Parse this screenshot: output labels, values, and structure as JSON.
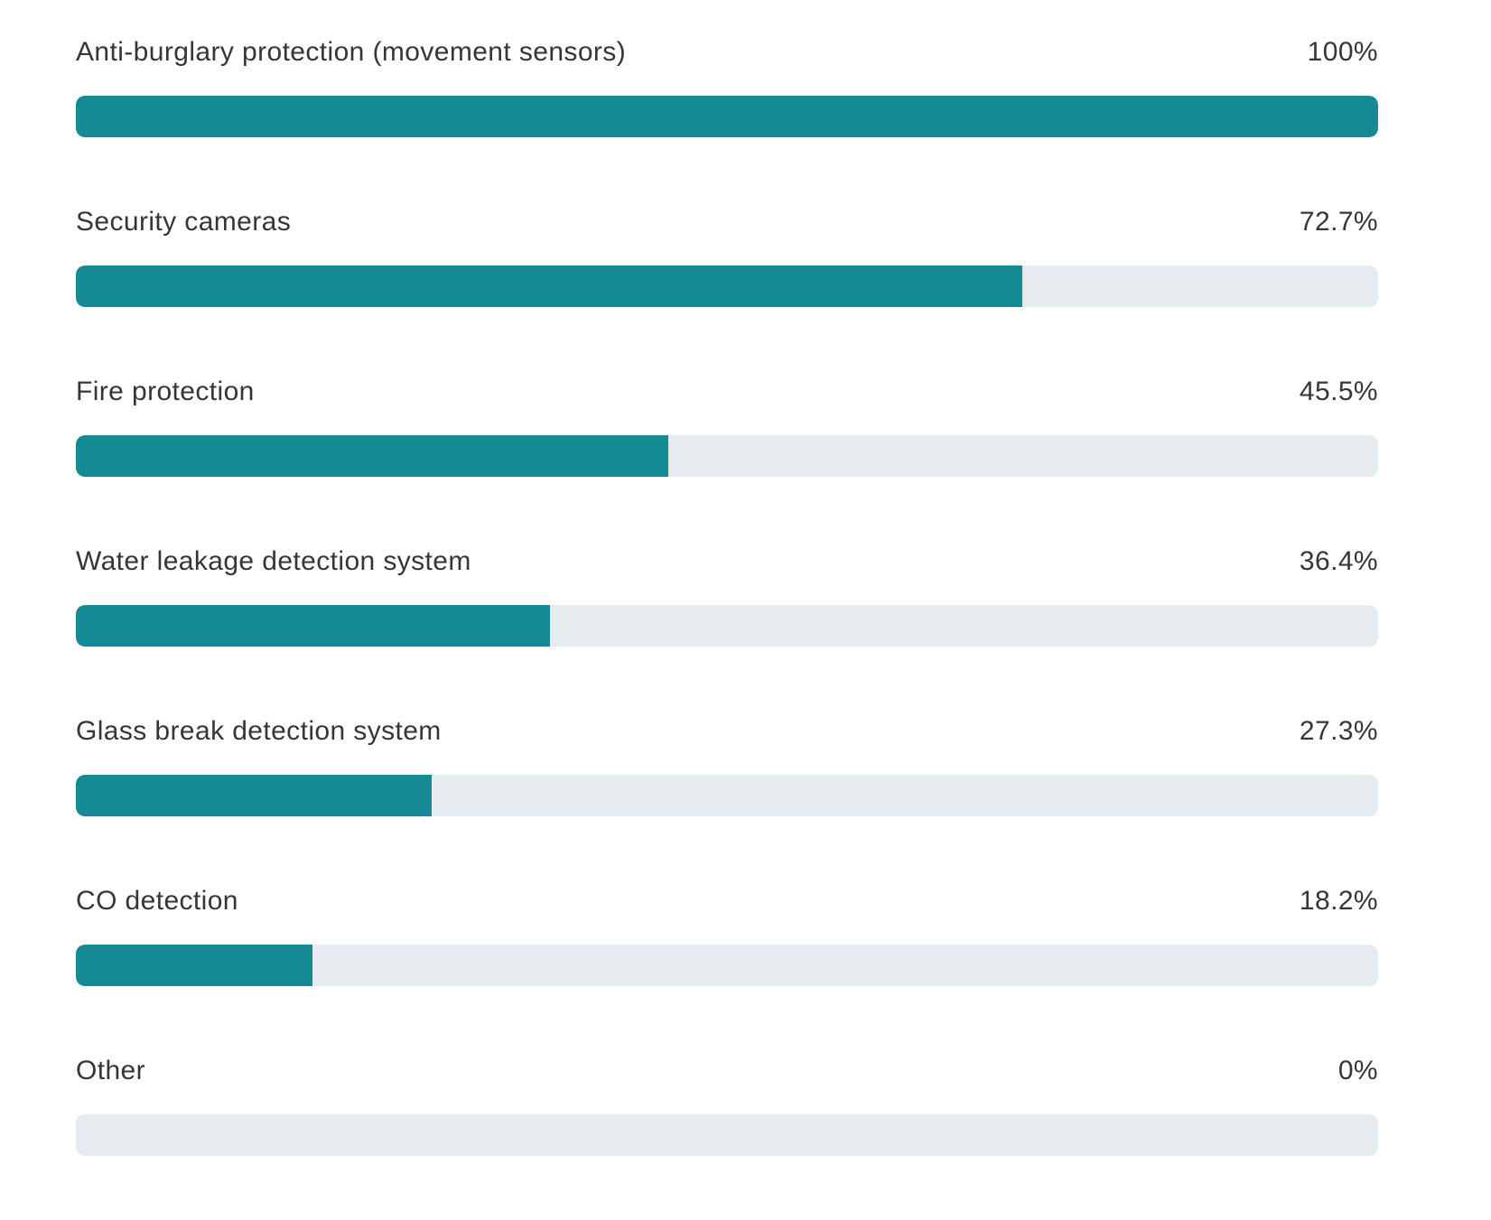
{
  "page": {
    "background": "#ffffff"
  },
  "chart_data": {
    "type": "bar",
    "orientation": "horizontal",
    "unit": "%",
    "title": "",
    "xlabel": "",
    "ylabel": "",
    "xlim": [
      0,
      100
    ],
    "grid": false,
    "legend": false,
    "bar_color": "#168a94",
    "track_color": "#e5ebee",
    "label_color": "#363636",
    "categories": [
      "Anti-burglary protection (movement sensors)",
      "Security cameras",
      "Fire protection",
      "Water leakage detection system",
      "Glass break detection system",
      "CO detection",
      "Other"
    ],
    "values": [
      100,
      72.7,
      45.5,
      36.4,
      27.3,
      18.2,
      0
    ],
    "value_labels": [
      "100%",
      "72.7%",
      "45.5%",
      "36.4%",
      "27.3%",
      "18.2%",
      "0%"
    ]
  }
}
